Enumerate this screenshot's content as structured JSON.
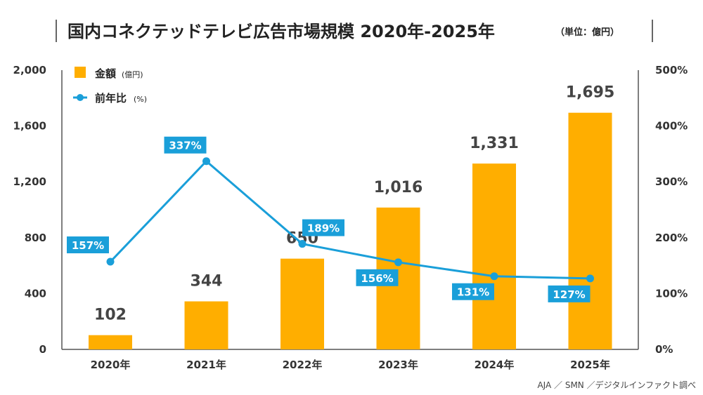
{
  "title": {
    "main": "国内コネクテッドテレビ広告市場規模 2020年-2025年",
    "unit": "（単位：億円）"
  },
  "source": "AJA ／ SMN ／デジタルインファクト調べ",
  "colors": {
    "bar": "#FFAE00",
    "line": "#1A9FD9",
    "axis": "#333333"
  },
  "chart_data": {
    "type": "bar",
    "categories": [
      "2020年",
      "2021年",
      "2022年",
      "2023年",
      "2024年",
      "2025年"
    ],
    "series": [
      {
        "name": "金額",
        "unit": "(億円)",
        "type": "bar",
        "axis": "left",
        "values": [
          102,
          344,
          650,
          1016,
          1331,
          1695
        ],
        "labels": [
          "102",
          "344",
          "650",
          "1,016",
          "1,331",
          "1,695"
        ]
      },
      {
        "name": "前年比",
        "unit": "(%)",
        "type": "line",
        "axis": "right",
        "values": [
          157,
          337,
          189,
          156,
          131,
          127
        ],
        "labels": [
          "157%",
          "337%",
          "189%",
          "156%",
          "131%",
          "127%"
        ]
      }
    ],
    "y_left": {
      "min": 0,
      "max": 2000,
      "ticks": [
        0,
        400,
        800,
        1200,
        1600,
        2000
      ],
      "tick_labels": [
        "0",
        "400",
        "800",
        "1,200",
        "1,600",
        "2,000"
      ]
    },
    "y_right": {
      "min": 0,
      "max": 500,
      "ticks": [
        0,
        100,
        200,
        300,
        400,
        500
      ],
      "tick_labels": [
        "0%",
        "100%",
        "200%",
        "300%",
        "400%",
        "500%"
      ]
    },
    "grid": false,
    "legend_position": "top-left"
  }
}
